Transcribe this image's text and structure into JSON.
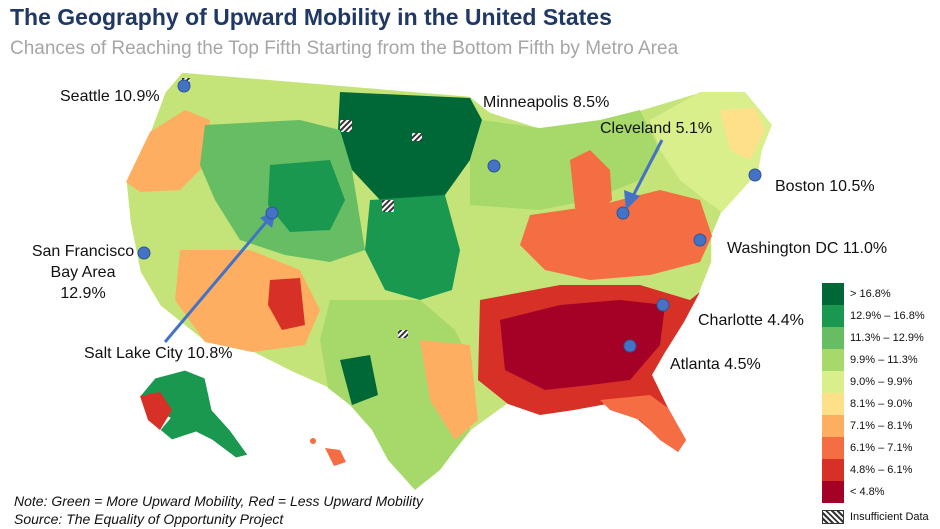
{
  "title": "The Geography of Upward Mobility in the United States",
  "subtitle": "Chances of Reaching the Top Fifth Starting from the Bottom Fifth by Metro Area",
  "cities": [
    {
      "key": "seattle",
      "label": "Seattle 10.9%"
    },
    {
      "key": "minneapolis",
      "label": "Minneapolis 8.5%"
    },
    {
      "key": "cleveland",
      "label": "Cleveland 5.1%"
    },
    {
      "key": "boston",
      "label": "Boston 10.5%"
    },
    {
      "key": "sf",
      "lines": [
        "San Francisco",
        "Bay Area",
        "12.9%"
      ]
    },
    {
      "key": "washington",
      "label": "Washington DC 11.0%"
    },
    {
      "key": "charlotte",
      "label": "Charlotte 4.4%"
    },
    {
      "key": "atlanta",
      "label": "Atlanta 4.5%"
    },
    {
      "key": "saltlake",
      "label": "Salt Lake City 10.8%"
    }
  ],
  "legend": {
    "items": [
      {
        "label": "> 16.8%",
        "color": "#006837"
      },
      {
        "label": "12.9% – 16.8%",
        "color": "#1a9850"
      },
      {
        "label": "11.3% – 12.9%",
        "color": "#66bd63"
      },
      {
        "label": "9.9% – 11.3%",
        "color": "#a6d96a"
      },
      {
        "label": "9.0% – 9.9%",
        "color": "#d9ef8b"
      },
      {
        "label": "8.1% – 9.0%",
        "color": "#fee08b"
      },
      {
        "label": "7.1% – 8.1%",
        "color": "#fdae61"
      },
      {
        "label": "6.1% – 7.1%",
        "color": "#f46d43"
      },
      {
        "label": "4.8% – 6.1%",
        "color": "#d73027"
      },
      {
        "label": "< 4.8%",
        "color": "#a50026"
      }
    ],
    "insufficient_label": "Insufficient Data"
  },
  "footer": {
    "note": "Note: Green = More Upward Mobility, Red = Less Upward Mobility",
    "source": "Source: The Equality of Opportunity Project"
  },
  "colors": {
    "title": "#1f3864",
    "marker": "#4472c4"
  }
}
